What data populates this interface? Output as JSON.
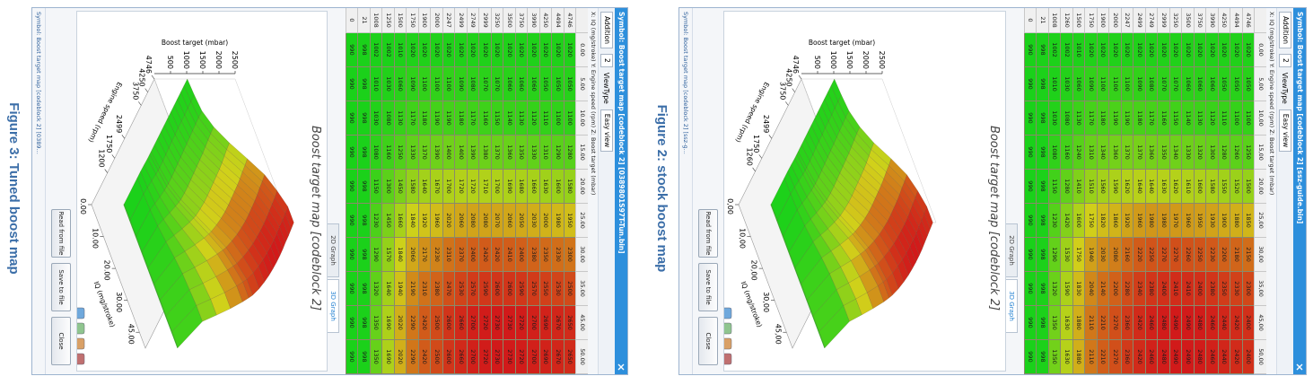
{
  "figures": [
    {
      "caption": "Figure 3: Tuned boost map",
      "window": {
        "title": "Symbol: Boost target map [codeblock 2] [0389801S97T-Tun.bin]",
        "toolbar": {
          "mode": "Addition",
          "step": "2",
          "viewtype_label": "ViewType",
          "viewtype": "Easy view"
        },
        "axes_info": "X: IQ (mg/stroke) Y: Engine speed (rpm) Z: Boost target (mbar)",
        "table": {
          "columns": [
            "0.00",
            "5.00",
            "10.00",
            "15.00",
            "20.00",
            "25.00",
            "30.00",
            "35.00",
            "45.00",
            "50.00"
          ],
          "rows": [
            {
              "rpm": 4746,
              "values": [
                1020,
                1050,
                1100,
                1280,
                1580,
                1950,
                2300,
                2500,
                2650,
                2650
              ]
            },
            {
              "rpm": 4494,
              "values": [
                1020,
                1050,
                1100,
                1290,
                1600,
                1980,
                2330,
                2530,
                2670,
                2670
              ]
            },
            {
              "rpm": 4250,
              "values": [
                1020,
                1050,
                1110,
                1310,
                1630,
                2000,
                2350,
                2550,
                2690,
                2690
              ]
            },
            {
              "rpm": 3990,
              "values": [
                1020,
                1060,
                1120,
                1330,
                1660,
                2030,
                2380,
                2570,
                2700,
                2700
              ]
            },
            {
              "rpm": 3750,
              "values": [
                1020,
                1060,
                1130,
                1350,
                1680,
                2050,
                2400,
                2590,
                2720,
                2720
              ]
            },
            {
              "rpm": 3500,
              "values": [
                1020,
                1060,
                1140,
                1360,
                1690,
                2060,
                2410,
                2600,
                2730,
                2730
              ]
            },
            {
              "rpm": 3250,
              "values": [
                1020,
                1070,
                1150,
                1370,
                1700,
                2070,
                2420,
                2600,
                2730,
                2730
              ]
            },
            {
              "rpm": 2999,
              "values": [
                1020,
                1070,
                1160,
                1380,
                1710,
                2080,
                2420,
                2590,
                2720,
                2720
              ]
            },
            {
              "rpm": 2749,
              "values": [
                1020,
                1080,
                1170,
                1390,
                1720,
                2080,
                2400,
                2570,
                2700,
                2700
              ]
            },
            {
              "rpm": 2499,
              "values": [
                1020,
                1090,
                1180,
                1400,
                1720,
                2060,
                2370,
                2530,
                2660,
                2660
              ]
            },
            {
              "rpm": 2247,
              "values": [
                1020,
                1100,
                1190,
                1400,
                1700,
                2020,
                2310,
                2470,
                2600,
                2600
              ]
            },
            {
              "rpm": 2000,
              "values": [
                1020,
                1100,
                1190,
                1390,
                1670,
                1960,
                2230,
                2380,
                2500,
                2500
              ]
            },
            {
              "rpm": 1900,
              "values": [
                1020,
                1100,
                1180,
                1370,
                1640,
                1920,
                2170,
                2310,
                2420,
                2420
              ]
            },
            {
              "rpm": 1750,
              "values": [
                1020,
                1090,
                1170,
                1330,
                1580,
                1840,
                2060,
                2190,
                2290,
                2290
              ]
            },
            {
              "rpm": 1500,
              "values": [
                1010,
                1060,
                1130,
                1250,
                1450,
                1660,
                1840,
                1940,
                2020,
                2020
              ]
            },
            {
              "rpm": 1250,
              "values": [
                1002,
                1030,
                1080,
                1160,
                1300,
                1450,
                1570,
                1640,
                1690,
                1690
              ]
            },
            {
              "rpm": 1008,
              "values": [
                1002,
                1010,
                1030,
                1080,
                1150,
                1230,
                1290,
                1320,
                1350,
                1350
              ]
            },
            {
              "rpm": 21,
              "values": [
                998,
                998,
                998,
                998,
                998,
                998,
                998,
                998,
                998,
                998
              ]
            },
            {
              "rpm": 0,
              "values": [
                990,
                990,
                990,
                990,
                990,
                990,
                990,
                990,
                990,
                990
              ]
            }
          ]
        },
        "tabs": [
          "2D Graph",
          "3D Graph"
        ],
        "graph": {
          "title": "Boost target map [codeblock 2]",
          "z_label": "Boost target (mbar)",
          "y_label": "Engine speed (rpm)",
          "x_label": "IQ (mg/stroke)",
          "z_ticks": [
            500,
            1000,
            1500,
            2000,
            2500
          ],
          "y_ticks": [
            4746,
            4250,
            3750,
            2499,
            1750,
            1200
          ],
          "x_ticks": [
            "0.00",
            "10.00",
            "20.00",
            "30.00",
            "45.00"
          ]
        },
        "buttons": [
          "Read from file",
          "Save to file",
          "Close"
        ],
        "status": "Symbol: Boost target map [codeblock 2] [0389..."
      }
    },
    {
      "caption": "Figure 2: stock boost map",
      "window": {
        "title": "Symbol: Boost target map [codeblock 2] [ssz-guide.bin]",
        "toolbar": {
          "mode": "Addition",
          "step": "2",
          "viewtype_label": "ViewType",
          "viewtype": "Easy view"
        },
        "axes_info": "X: IQ (mg/stroke) Y: Engine speed (rpm) Z: Boost target (mbar)",
        "table": {
          "columns": [
            "0,00",
            "5,00",
            "10,00",
            "15,00",
            "20,00",
            "25,00",
            "30,00",
            "35,00",
            "45,00",
            "50,00"
          ],
          "rows": [
            {
              "rpm": 4746,
              "values": [
                1020,
                1050,
                1100,
                1250,
                1500,
                1850,
                2150,
                2300,
                2400,
                2400
              ]
            },
            {
              "rpm": 4494,
              "values": [
                1020,
                1050,
                1100,
                1260,
                1520,
                1880,
                2180,
                2330,
                2420,
                2420
              ]
            },
            {
              "rpm": 4250,
              "values": [
                1020,
                1050,
                1110,
                1280,
                1550,
                1900,
                2200,
                2350,
                2440,
                2440
              ]
            },
            {
              "rpm": 3990,
              "values": [
                1020,
                1060,
                1120,
                1300,
                1580,
                1930,
                2230,
                2380,
                2460,
                2460
              ]
            },
            {
              "rpm": 3750,
              "values": [
                1020,
                1060,
                1130,
                1320,
                1600,
                1950,
                2250,
                2400,
                2480,
                2480
              ]
            },
            {
              "rpm": 3500,
              "values": [
                1020,
                1060,
                1140,
                1330,
                1610,
                1960,
                2260,
                2410,
                2490,
                2490
              ]
            },
            {
              "rpm": 3250,
              "values": [
                1020,
                1070,
                1150,
                1340,
                1620,
                1970,
                2270,
                2410,
                2490,
                2490
              ]
            },
            {
              "rpm": 2999,
              "values": [
                1020,
                1070,
                1160,
                1350,
                1630,
                1980,
                2270,
                2400,
                2480,
                2480
              ]
            },
            {
              "rpm": 2749,
              "values": [
                1020,
                1080,
                1170,
                1360,
                1640,
                1980,
                2250,
                2380,
                2460,
                2460
              ]
            },
            {
              "rpm": 2499,
              "values": [
                1020,
                1090,
                1180,
                1370,
                1640,
                1960,
                2220,
                2340,
                2420,
                2420
              ]
            },
            {
              "rpm": 2247,
              "values": [
                1020,
                1100,
                1190,
                1370,
                1620,
                1920,
                2160,
                2280,
                2360,
                2360
              ]
            },
            {
              "rpm": 2000,
              "values": [
                1020,
                1100,
                1190,
                1360,
                1590,
                1860,
                2080,
                2200,
                2270,
                2270
              ]
            },
            {
              "rpm": 1900,
              "values": [
                1020,
                1100,
                1180,
                1340,
                1560,
                1820,
                2030,
                2140,
                2210,
                2210
              ]
            },
            {
              "rpm": 1750,
              "values": [
                1020,
                1090,
                1170,
                1310,
                1510,
                1750,
                1940,
                2040,
                2110,
                2110
              ]
            },
            {
              "rpm": 1500,
              "values": [
                1010,
                1060,
                1130,
                1240,
                1410,
                1600,
                1750,
                1830,
                1880,
                1880
              ]
            },
            {
              "rpm": 1260,
              "values": [
                1002,
                1030,
                1080,
                1160,
                1280,
                1420,
                1530,
                1590,
                1630,
                1630
              ]
            },
            {
              "rpm": 1008,
              "values": [
                1002,
                1010,
                1030,
                1080,
                1150,
                1230,
                1290,
                1320,
                1350,
                1350
              ]
            },
            {
              "rpm": 21,
              "values": [
                998,
                998,
                998,
                998,
                998,
                998,
                998,
                998,
                998,
                998
              ]
            },
            {
              "rpm": 0,
              "values": [
                990,
                990,
                990,
                990,
                990,
                990,
                990,
                990,
                990,
                990
              ]
            }
          ]
        },
        "tabs": [
          "2D Graph",
          "3D Graph"
        ],
        "graph": {
          "title": "Boost target map [codeblock 2]",
          "z_label": "Boost target (mbar)",
          "y_label": "Engine speed (rpm)",
          "x_label": "IQ (mg/stroke)",
          "z_ticks": [
            500,
            1000,
            1500,
            2000,
            2500
          ],
          "y_ticks": [
            4746,
            4250,
            3750,
            2499,
            1750,
            1260
          ],
          "x_ticks": [
            "0,00",
            "10,00",
            "20,00",
            "30,00",
            "45,00"
          ]
        },
        "buttons": [
          "Read from file",
          "Save to file",
          "Close"
        ],
        "status": "Symbol: Boost target map [codeblock 2] [ssz-g..."
      }
    }
  ]
}
